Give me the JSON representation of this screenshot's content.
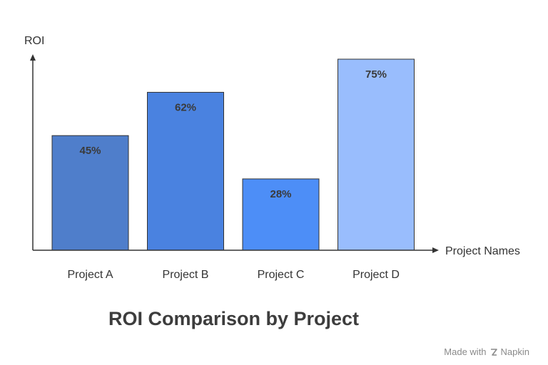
{
  "chart_data": {
    "type": "bar",
    "title": "ROI Comparison by Project",
    "xlabel": "Project Names",
    "ylabel": "ROI",
    "categories": [
      "Project A",
      "Project B",
      "Project C",
      "Project D"
    ],
    "values": [
      45,
      62,
      28,
      75
    ],
    "value_labels": [
      "45%",
      "62%",
      "28%",
      "75%"
    ],
    "colors": [
      "#4f7ecb",
      "#4a82e0",
      "#4d8ef7",
      "#99bdfd"
    ],
    "ylim": [
      0,
      75
    ],
    "grid": false,
    "legend": "none"
  },
  "branding": {
    "made_with": "Made with",
    "name": "Napkin",
    "icon": "napkin-logo-icon"
  }
}
